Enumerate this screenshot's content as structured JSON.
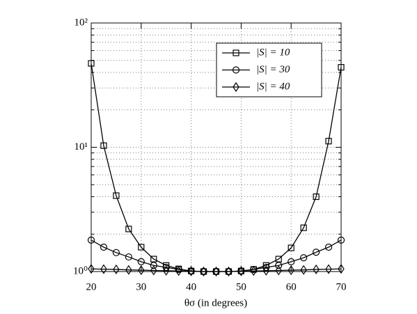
{
  "chart_data": {
    "type": "line",
    "xlabel": "θσ (in degrees)",
    "x": [
      20,
      22.5,
      25,
      27.5,
      30,
      32.5,
      35,
      37.5,
      40,
      42.5,
      45,
      47.5,
      50,
      52.5,
      55,
      57.5,
      60,
      62.5,
      65,
      67.5,
      70
    ],
    "series": [
      {
        "name": "|S| = 10",
        "color": "#000000",
        "marker": "square",
        "values": [
          47.3,
          10.3,
          4.08,
          2.2,
          1.57,
          1.26,
          1.12,
          1.05,
          1.01,
          1.0,
          1.0,
          1.0,
          1.01,
          1.04,
          1.12,
          1.26,
          1.55,
          2.25,
          4.0,
          11.2,
          44
        ]
      },
      {
        "name": "|S| = 30",
        "color": "#000000",
        "marker": "circle",
        "values": [
          1.79,
          1.57,
          1.42,
          1.31,
          1.2,
          1.12,
          1.08,
          1.04,
          1.01,
          1.0,
          1.0,
          1.0,
          1.01,
          1.04,
          1.08,
          1.12,
          1.2,
          1.29,
          1.43,
          1.57,
          1.79
        ]
      },
      {
        "name": "|S| = 40",
        "color": "#000000",
        "marker": "diamond",
        "values": [
          1.05,
          1.045,
          1.04,
          1.03,
          1.025,
          1.02,
          1.015,
          1.01,
          1.005,
          1.0,
          1.0,
          1.0,
          1.005,
          1.01,
          1.015,
          1.02,
          1.025,
          1.03,
          1.04,
          1.045,
          1.05
        ]
      }
    ],
    "xlim": [
      20,
      70
    ],
    "xticks": [
      20,
      30,
      40,
      50,
      60,
      70
    ],
    "ylim": [
      1,
      100
    ],
    "ylog": true,
    "yticks": [
      {
        "value": 1,
        "label": "10⁰"
      },
      {
        "value": 10,
        "label": "10¹"
      },
      {
        "value": 100,
        "label": "10²"
      }
    ],
    "yminorticks": [
      2,
      3,
      4,
      5,
      6,
      7,
      8,
      9,
      20,
      30,
      40,
      50,
      60,
      70,
      80,
      90
    ],
    "grid": true,
    "legend": "upper right"
  }
}
